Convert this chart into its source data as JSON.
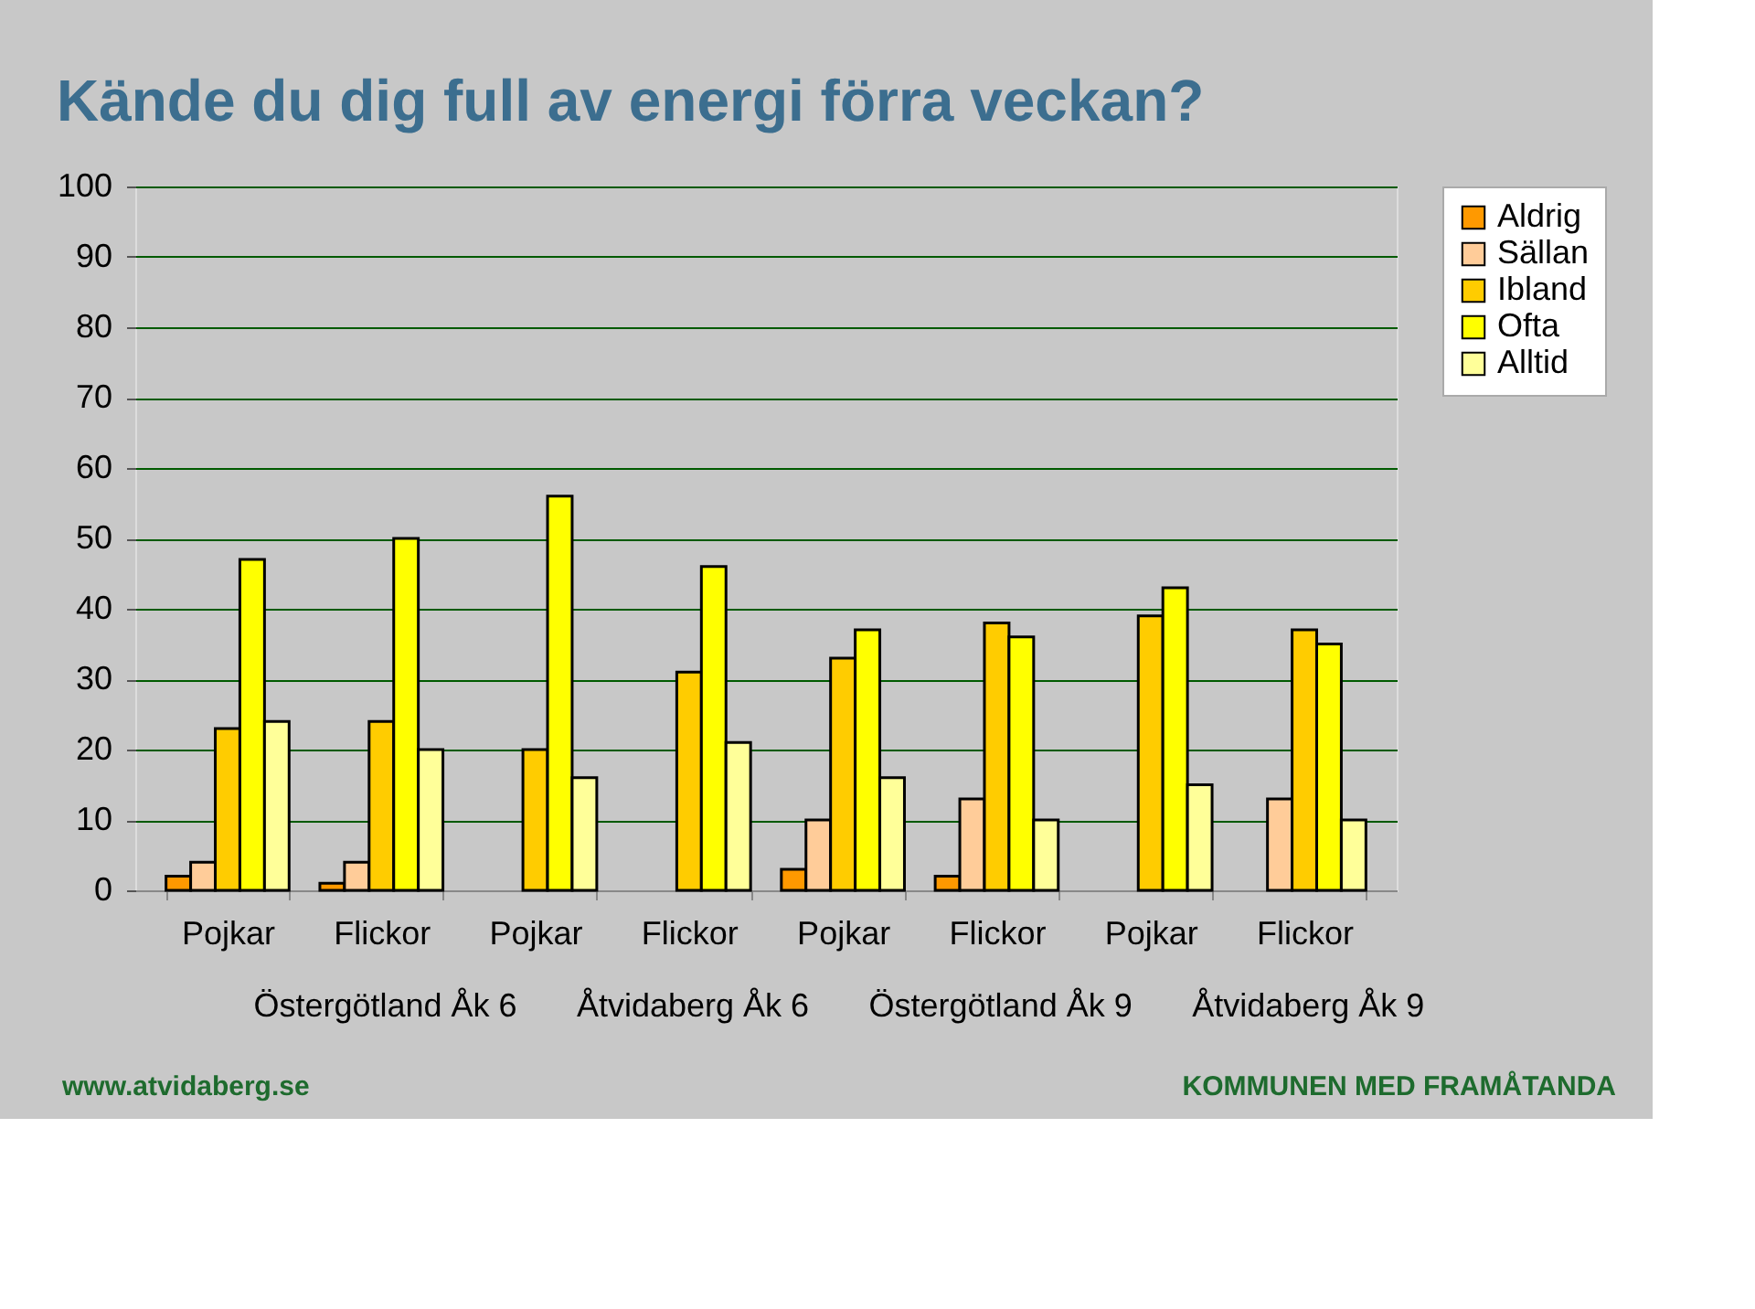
{
  "chart_data": {
    "type": "bar",
    "title": "Kände du dig full av energi förra veckan?",
    "categories": [
      "Pojkar",
      "Flickor",
      "Pojkar",
      "Flickor",
      "Pojkar",
      "Flickor",
      "Pojkar",
      "Flickor"
    ],
    "series": [
      {
        "name": "Aldrig",
        "color": "#ff9900",
        "values": [
          2,
          1,
          null,
          null,
          3,
          2,
          null,
          null
        ]
      },
      {
        "name": "Sällan",
        "color": "#ffcc99",
        "values": [
          4,
          4,
          null,
          null,
          10,
          13,
          null,
          13
        ]
      },
      {
        "name": "Ibland",
        "color": "#ffcc00",
        "values": [
          23,
          24,
          20,
          31,
          33,
          38,
          39,
          37
        ]
      },
      {
        "name": "Ofta",
        "color": "#ffff00",
        "values": [
          47,
          50,
          56,
          46,
          37,
          36,
          43,
          35
        ]
      },
      {
        "name": "Alltid",
        "color": "#ffff99",
        "values": [
          24,
          20,
          16,
          21,
          16,
          10,
          15,
          10
        ]
      }
    ],
    "ylim": [
      0,
      100
    ],
    "yticks": [
      0,
      10,
      20,
      30,
      40,
      50,
      60,
      70,
      80,
      90,
      100
    ],
    "grid": "y",
    "legend": "right",
    "annotations": [
      "Östergötland Åk 6",
      "Åtvidaberg Åk 6",
      "Östergötland Åk 9",
      "Åtvidaberg Åk 9",
      "www.atvidaberg.se",
      "KOMMUNEN MED FRAMÅTANDA"
    ]
  }
}
